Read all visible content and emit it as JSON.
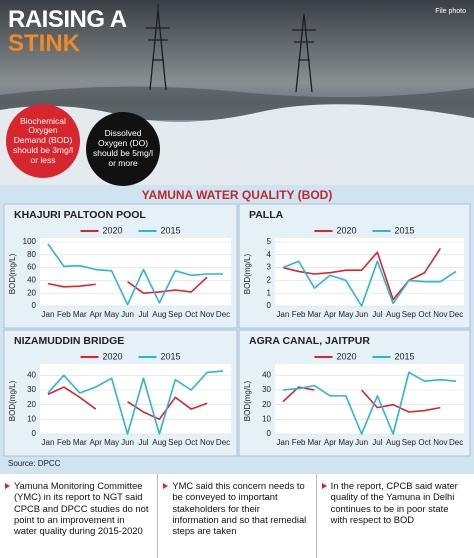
{
  "header": {
    "title_line1": "RAISING A",
    "title_line2": "STINK",
    "credit": "File photo",
    "callouts": [
      "Biochemical Oxygen Demand (BOD) should be 3mg/l or less",
      "Dissolved Oxygen (DO) should be 5mg/l or more"
    ]
  },
  "section_title": "YAMUNA WATER QUALITY (BOD)",
  "source": "Source: DPCC",
  "notes": [
    "Yamuna Monitoring Committee (YMC) in its report to NGT said CPCB and DPCC studies do not point to an improvement in water quality during 2015-2020",
    "YMC said this concern needs to be conveyed to important stakeholders for their information and so that remedial steps are taken",
    "In the report, CPCB said water quality of the Yamuna in Delhi continues to be in poor state with respect to BOD"
  ],
  "chart_data": [
    {
      "type": "line",
      "title": "KHAJURI PALTOON POOL",
      "ylabel": "BOD(mg/L)",
      "categories": [
        "Jan",
        "Feb",
        "Mar",
        "Apr",
        "May",
        "Jun",
        "Jul",
        "Aug",
        "Sep",
        "Oct",
        "Nov",
        "Dec"
      ],
      "series": [
        {
          "name": "2020",
          "color": "#d7262e",
          "values": [
            35,
            30,
            31,
            34,
            null,
            38,
            20,
            22,
            25,
            22,
            45,
            null
          ]
        },
        {
          "name": "2015",
          "color": "#2bb5d8",
          "values": [
            97,
            62,
            63,
            57,
            55,
            2,
            57,
            5,
            55,
            48,
            50,
            50
          ]
        }
      ],
      "ylim": [
        0,
        100
      ],
      "yticks": [
        0,
        20,
        40,
        60,
        80,
        100
      ]
    },
    {
      "type": "line",
      "title": "PALLA",
      "ylabel": "BOD(mg/L)",
      "categories": [
        "Jan",
        "Feb",
        "Mar",
        "Apr",
        "May",
        "Jun",
        "Jul",
        "Aug",
        "Sep",
        "Oct",
        "Nov",
        "Dec"
      ],
      "series": [
        {
          "name": "2020",
          "color": "#d7262e",
          "values": [
            3,
            2.7,
            2.5,
            2.6,
            2.8,
            2.8,
            4.2,
            0.5,
            2,
            2.6,
            4.5,
            null
          ]
        },
        {
          "name": "2015",
          "color": "#2bb5d8",
          "values": [
            3,
            3.5,
            1.4,
            2.4,
            2,
            0,
            3.5,
            0.2,
            2,
            1.9,
            1.9,
            2.7
          ]
        }
      ],
      "ylim": [
        0,
        5
      ],
      "yticks": [
        0,
        1,
        2,
        3,
        4,
        5
      ]
    },
    {
      "type": "line",
      "title": "NIZAMUDDIN BRIDGE",
      "ylabel": "BOD(mg/L)",
      "categories": [
        "Jan",
        "Feb",
        "Mar",
        "Apr",
        "May",
        "Jun",
        "Jul",
        "Aug",
        "Sep",
        "Oct",
        "Nov",
        "Dec"
      ],
      "series": [
        {
          "name": "2020",
          "color": "#d7262e",
          "values": [
            27,
            32,
            25,
            17,
            null,
            22,
            15,
            10,
            25,
            17,
            21,
            null
          ]
        },
        {
          "name": "2015",
          "color": "#2bb5d8",
          "values": [
            28,
            40,
            28,
            32,
            38,
            0,
            38,
            0,
            37,
            30,
            42,
            43
          ]
        }
      ],
      "ylim": [
        0,
        45
      ],
      "yticks": [
        0,
        10,
        20,
        30,
        40
      ]
    },
    {
      "type": "line",
      "title": "AGRA CANAL, JAITPUR",
      "ylabel": "BOD(mg/L)",
      "categories": [
        "Jan",
        "Feb",
        "Mar",
        "Apr",
        "May",
        "Jun",
        "Jul",
        "Aug",
        "Sep",
        "Oct",
        "Nov",
        "Dec"
      ],
      "series": [
        {
          "name": "2020",
          "color": "#d7262e",
          "values": [
            22,
            32,
            30,
            null,
            null,
            30,
            18,
            20,
            15,
            16,
            18,
            null
          ]
        },
        {
          "name": "2015",
          "color": "#2bb5d8",
          "values": [
            30,
            31,
            33,
            26,
            26,
            0,
            26,
            0,
            42,
            36,
            37,
            36
          ]
        }
      ],
      "ylim": [
        0,
        45
      ],
      "yticks": [
        0,
        10,
        20,
        30,
        40
      ]
    }
  ]
}
